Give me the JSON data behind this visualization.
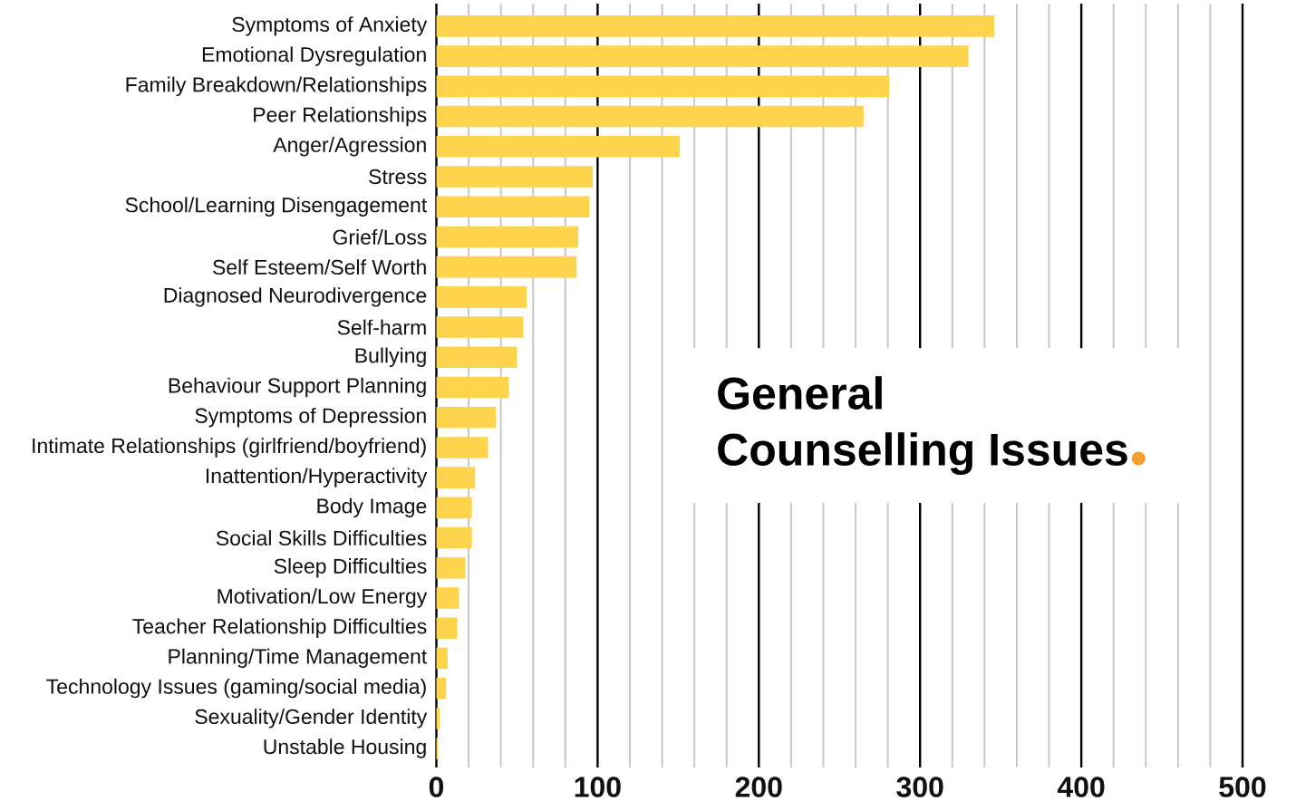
{
  "chart_data": {
    "type": "bar",
    "orientation": "horizontal",
    "title": "General Counselling Issues",
    "categories": [
      "Symptoms of Anxiety",
      "Emotional Dysregulation",
      "Family Breakdown/Relationships",
      "Peer Relationships",
      "Anger/Agression",
      "Stress",
      "School/Learning Disengagement",
      "Grief/Loss",
      "Self Esteem/Self Worth",
      "Diagnosed Neurodivergence",
      "Self-harm",
      "Bullying",
      "Behaviour Support Planning",
      "Symptoms of Depression",
      "Intimate Relationships (girlfriend/boyfriend)",
      "Inattention/Hyperactivity",
      "Body Image",
      "Social Skills Difficulties",
      "Sleep Difficulties",
      "Motivation/Low Energy",
      "Teacher Relationship Difficulties",
      "Planning/Time Management",
      "Technology Issues (gaming/social media)",
      "Sexuality/Gender Identity",
      "Unstable Housing"
    ],
    "values": [
      346,
      330,
      281,
      265,
      151,
      97,
      95,
      88,
      87,
      56,
      54,
      50,
      45,
      37,
      32,
      24,
      22,
      22,
      18,
      14,
      13,
      7,
      6,
      2,
      1
    ],
    "color": "#fdd44b",
    "xlim": [
      0,
      500
    ],
    "xticks": [
      0,
      {
        "value": 20,
        "label": null
      },
      {
        "value": 40,
        "label": null
      },
      {
        "value": 60,
        "label": null
      },
      {
        "value": 80,
        "label": null
      },
      100,
      {
        "value": 120,
        "label": null
      },
      {
        "value": 140,
        "label": null
      },
      {
        "value": 160,
        "label": null
      },
      {
        "value": 180,
        "label": null
      },
      200,
      {
        "value": 220,
        "label": null
      },
      {
        "value": 240,
        "label": null
      },
      {
        "value": 260,
        "label": null
      },
      {
        "value": 280,
        "label": null
      },
      300,
      {
        "value": 320,
        "label": null
      },
      {
        "value": 340,
        "label": null
      },
      {
        "value": 360,
        "label": null
      },
      {
        "value": 380,
        "label": null
      },
      400,
      {
        "value": 420,
        "label": null
      },
      {
        "value": 440,
        "label": null
      },
      {
        "value": 460,
        "label": null
      },
      {
        "value": 480,
        "label": null
      },
      500
    ],
    "grid": "x"
  }
}
